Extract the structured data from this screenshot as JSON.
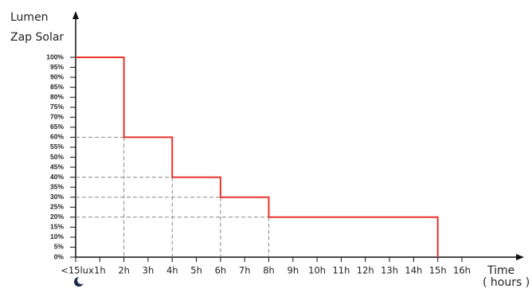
{
  "chart_data": {
    "type": "line",
    "y_label": [
      "Lumen",
      "Zap Solar"
    ],
    "x_label": [
      "Time",
      "( hours )"
    ],
    "x": [
      0,
      2,
      2,
      4,
      4,
      6,
      6,
      8,
      8,
      15,
      15
    ],
    "series": [
      {
        "name": "Lumen",
        "color": "#e8322a",
        "values": [
          100,
          100,
          60,
          60,
          40,
          40,
          30,
          30,
          20,
          20,
          0
        ]
      }
    ],
    "xlim": [
      0,
      16
    ],
    "ylim": [
      0,
      100
    ],
    "xticks": [
      {
        "value": 0,
        "label": "<15lux"
      },
      {
        "value": 1,
        "label": "1h"
      },
      {
        "value": 2,
        "label": "2h"
      },
      {
        "value": 3,
        "label": "3h"
      },
      {
        "value": 4,
        "label": "4h"
      },
      {
        "value": 5,
        "label": "5h"
      },
      {
        "value": 6,
        "label": "6h"
      },
      {
        "value": 7,
        "label": "7h"
      },
      {
        "value": 8,
        "label": "8h"
      },
      {
        "value": 9,
        "label": "9h"
      },
      {
        "value": 10,
        "label": "10h"
      },
      {
        "value": 11,
        "label": "11h"
      },
      {
        "value": 12,
        "label": "12h"
      },
      {
        "value": 13,
        "label": "13h"
      },
      {
        "value": 14,
        "label": "14h"
      },
      {
        "value": 15,
        "label": "15h"
      },
      {
        "value": 16,
        "label": "16h"
      }
    ],
    "yticks": [
      {
        "value": 0,
        "label": "0%"
      },
      {
        "value": 5,
        "label": "5%"
      },
      {
        "value": 10,
        "label": "10%"
      },
      {
        "value": 15,
        "label": "15%"
      },
      {
        "value": 20,
        "label": "20%"
      },
      {
        "value": 25,
        "label": "25%"
      },
      {
        "value": 30,
        "label": "30%"
      },
      {
        "value": 35,
        "label": "35%"
      },
      {
        "value": 40,
        "label": "40%"
      },
      {
        "value": 45,
        "label": "45%"
      },
      {
        "value": 50,
        "label": "50%"
      },
      {
        "value": 55,
        "label": "55%"
      },
      {
        "value": 60,
        "label": "60%"
      },
      {
        "value": 65,
        "label": "65%"
      },
      {
        "value": 70,
        "label": "70%"
      },
      {
        "value": 75,
        "label": "75%"
      },
      {
        "value": 80,
        "label": "80%"
      },
      {
        "value": 85,
        "label": "85%"
      },
      {
        "value": 90,
        "label": "90%"
      },
      {
        "value": 95,
        "label": "95%"
      },
      {
        "value": 100,
        "label": "100%"
      }
    ],
    "grid": false
  }
}
